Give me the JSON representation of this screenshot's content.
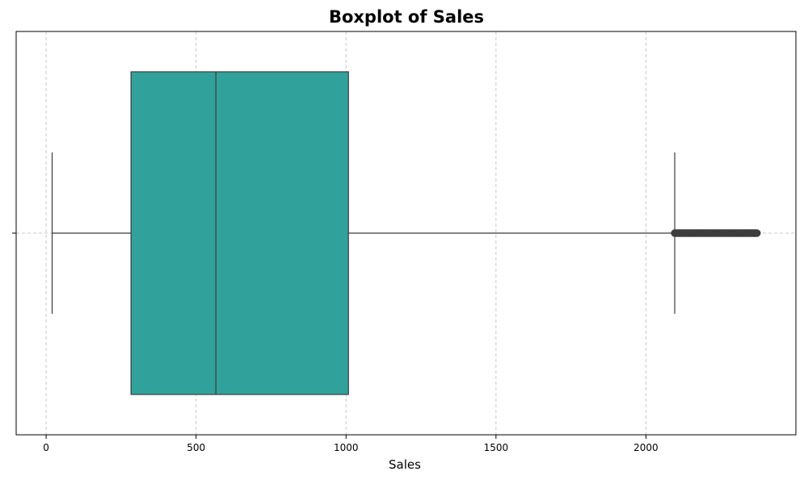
{
  "chart_data": {
    "type": "box",
    "title": "Boxplot of Sales",
    "xlabel": "Sales",
    "ylabel": "",
    "orientation": "horizontal",
    "xlim": [
      -100,
      2500
    ],
    "xticks": [
      0,
      500,
      1000,
      1500,
      2000
    ],
    "xtick_labels": [
      "0",
      "500",
      "1000",
      "1500",
      "2000"
    ],
    "grid": true,
    "grid_style": "dashed",
    "box": {
      "whisker_low": 20,
      "q1": 283,
      "median": 566,
      "q3": 1008,
      "whisker_high": 2096,
      "outlier_range": [
        2096,
        2370
      ]
    },
    "colors": {
      "box_fill": "#31a29b",
      "box_edge": "#3b3b3b",
      "outlier": "#3d3d3d",
      "grid": "#c8c8c8"
    }
  }
}
